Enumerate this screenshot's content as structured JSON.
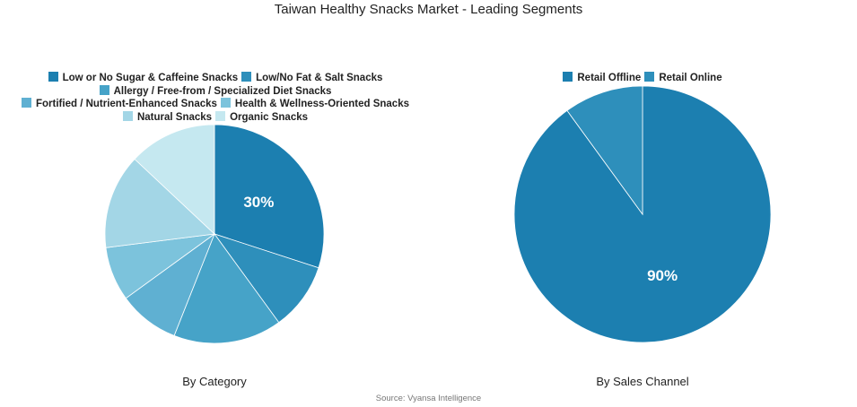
{
  "title": "Taiwan Healthy Snacks Market - Leading Segments",
  "source": "Source: Vyansa Intelligence",
  "chart_data": [
    {
      "type": "pie",
      "subtitle": "By Category",
      "categories": [
        "Low or No Sugar & Caffeine Snacks",
        "Low/No Fat & Salt Snacks",
        "Allergy / Free-from / Specialized Diet Snacks",
        "Fortified / Nutrient-Enhanced Snacks",
        "Health & Wellness-Oriented Snacks",
        "Natural Snacks",
        "Organic Snacks"
      ],
      "values": [
        30,
        10,
        16,
        9,
        8,
        14,
        13
      ],
      "colors": [
        "#1c7fb0",
        "#2e8fbb",
        "#46a3c8",
        "#5fb0d2",
        "#7cc3dc",
        "#a3d6e6",
        "#c5e8f0"
      ],
      "data_labels": [
        "30%",
        "",
        "",
        "",
        "",
        "",
        ""
      ],
      "legend_position": "top"
    },
    {
      "type": "pie",
      "subtitle": "By Sales Channel",
      "categories": [
        "Retail Offline",
        "Retail Online"
      ],
      "values": [
        90,
        10
      ],
      "colors": [
        "#1c7fb0",
        "#2e8fbb"
      ],
      "data_labels": [
        "90%",
        ""
      ],
      "legend_position": "top"
    }
  ]
}
